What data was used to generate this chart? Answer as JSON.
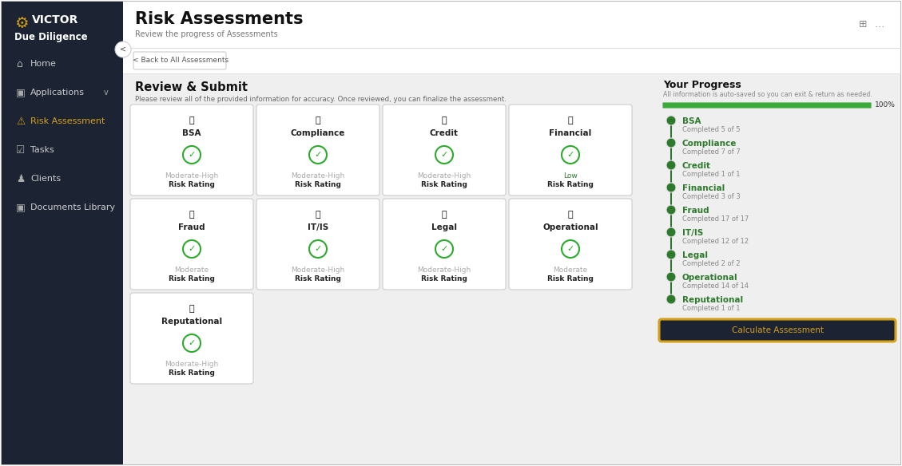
{
  "sidebar_bg": "#1c2333",
  "main_bg": "#efefef",
  "header_bg": "#ffffff",
  "nav_bg": "#f5f5f5",
  "title": "Risk Assessments",
  "subtitle": "Review the progress of Assessments",
  "back_btn": "< Back to All Assessments",
  "section_title": "Review & Submit",
  "section_subtitle": "Please review all of the provided information for accuracy. Once reviewed, you can finalize the assessment.",
  "sidebar_logo": "VICTOR",
  "sidebar_app": "Due Diligence",
  "cards_row1": [
    {
      "label": "BSA",
      "rating_label": "Moderate-High",
      "rating_color": "#aaaaaa",
      "sub": "Risk Rating"
    },
    {
      "label": "Compliance",
      "rating_label": "Moderate-High",
      "rating_color": "#aaaaaa",
      "sub": "Risk Rating"
    },
    {
      "label": "Credit",
      "rating_label": "Moderate-High",
      "rating_color": "#aaaaaa",
      "sub": "Risk Rating"
    },
    {
      "label": "Financial",
      "rating_label": "Low",
      "rating_color": "#2d7a2d",
      "sub": "Risk Rating"
    }
  ],
  "cards_row2": [
    {
      "label": "Fraud",
      "rating_label": "Moderate",
      "rating_color": "#aaaaaa",
      "sub": "Risk Rating"
    },
    {
      "label": "IT/IS",
      "rating_label": "Moderate-High",
      "rating_color": "#aaaaaa",
      "sub": "Risk Rating"
    },
    {
      "label": "Legal",
      "rating_label": "Moderate-High",
      "rating_color": "#aaaaaa",
      "sub": "Risk Rating"
    },
    {
      "label": "Operational",
      "rating_label": "Moderate",
      "rating_color": "#aaaaaa",
      "sub": "Risk Rating"
    }
  ],
  "cards_row3": [
    {
      "label": "Reputational",
      "rating_label": "Moderate-High",
      "rating_color": "#aaaaaa",
      "sub": "Risk Rating"
    }
  ],
  "progress_title": "Your Progress",
  "progress_subtitle": "All information is auto-saved so you can exit & return as needed.",
  "progress_pct": "100%",
  "progress_items": [
    {
      "name": "BSA",
      "detail": "Completed 5 of 5"
    },
    {
      "name": "Compliance",
      "detail": "Completed 7 of 7"
    },
    {
      "name": "Credit",
      "detail": "Completed 1 of 1"
    },
    {
      "name": "Financial",
      "detail": "Completed 3 of 3"
    },
    {
      "name": "Fraud",
      "detail": "Completed 17 of 17"
    },
    {
      "name": "IT/IS",
      "detail": "Completed 12 of 12"
    },
    {
      "name": "Legal",
      "detail": "Completed 2 of 2"
    },
    {
      "name": "Operational",
      "detail": "Completed 14 of 14"
    },
    {
      "name": "Reputational",
      "detail": "Completed 1 of 1"
    }
  ],
  "calc_btn_label": "Calculate Assessment",
  "green_dark": "#2d7a2d",
  "green_line": "#3aaa3a",
  "gold": "#d4a017",
  "card_border": "#cccccc",
  "card_bg": "#ffffff",
  "check_green": "#2daa2d",
  "sidebar_text": "#cccccc",
  "sidebar_active": "#d4a017",
  "dark_btn_bg": "#1c2333"
}
